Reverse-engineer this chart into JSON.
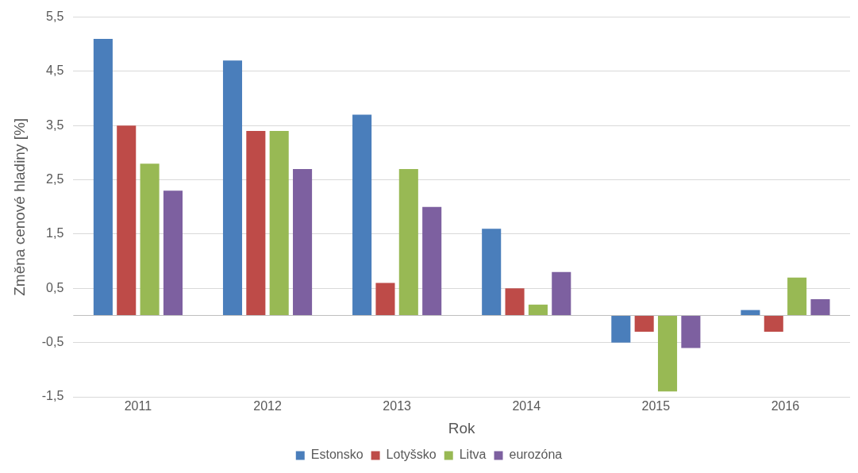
{
  "chart_data": {
    "type": "bar",
    "xlabel": "Rok",
    "ylabel": "Změna cenové hladiny [%]",
    "categories": [
      "2011",
      "2012",
      "2013",
      "2014",
      "2015",
      "2016"
    ],
    "series": [
      {
        "name": "Estonsko",
        "color": "#4a7ebb",
        "values": [
          5.1,
          4.7,
          3.7,
          1.6,
          -0.5,
          0.1
        ]
      },
      {
        "name": "Lotyšsko",
        "color": "#be4b48",
        "values": [
          3.5,
          3.4,
          0.6,
          0.5,
          -0.3,
          -0.3
        ]
      },
      {
        "name": "Litva",
        "color": "#98b954",
        "values": [
          2.8,
          3.4,
          2.7,
          0.2,
          -1.4,
          0.7
        ]
      },
      {
        "name": "eurozóna",
        "color": "#7d60a0",
        "values": [
          2.3,
          2.7,
          2.0,
          0.8,
          -0.6,
          0.3
        ]
      }
    ],
    "ylim": [
      -1.5,
      5.5
    ],
    "yticks": [
      {
        "value": -1.5,
        "label": "-1,5"
      },
      {
        "value": -0.5,
        "label": "-0,5"
      },
      {
        "value": 0.5,
        "label": "0,5"
      },
      {
        "value": 1.5,
        "label": "1,5"
      },
      {
        "value": 2.5,
        "label": "2,5"
      },
      {
        "value": 3.5,
        "label": "3,5"
      },
      {
        "value": 4.5,
        "label": "4,5"
      },
      {
        "value": 5.5,
        "label": "5,5"
      }
    ],
    "grid": "y",
    "legend": "bottom"
  }
}
